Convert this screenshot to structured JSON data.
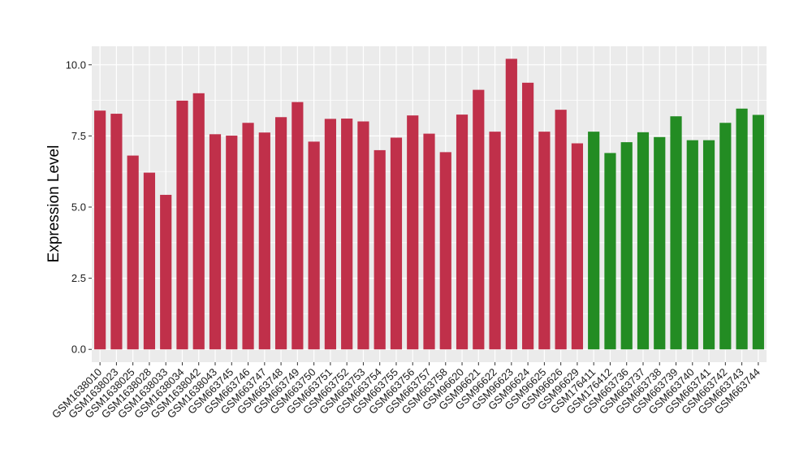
{
  "chart_data": {
    "type": "bar",
    "title": "",
    "xlabel": "",
    "ylabel": "Expression Level",
    "ylim": [
      -0.45,
      10.65
    ],
    "yticks": [
      0.0,
      2.5,
      5.0,
      7.5,
      10.0
    ],
    "ytick_labels": [
      "0.0",
      "2.5",
      "5.0",
      "7.5",
      "10.0"
    ],
    "grid": true,
    "legend": "none",
    "categories": [
      "GSM1638010",
      "GSM1638023",
      "GSM1638025",
      "GSM1638028",
      "GSM1638033",
      "GSM1638034",
      "GSM1638042",
      "GSM1638043",
      "GSM663745",
      "GSM663746",
      "GSM663747",
      "GSM663748",
      "GSM663749",
      "GSM663750",
      "GSM663751",
      "GSM663752",
      "GSM663753",
      "GSM663754",
      "GSM663755",
      "GSM663756",
      "GSM663757",
      "GSM663758",
      "GSM96620",
      "GSM96621",
      "GSM96622",
      "GSM96623",
      "GSM96624",
      "GSM96625",
      "GSM96626",
      "GSM96629",
      "GSM176411",
      "GSM176412",
      "GSM663736",
      "GSM663737",
      "GSM663738",
      "GSM663739",
      "GSM663740",
      "GSM663741",
      "GSM663742",
      "GSM663743",
      "GSM663744"
    ],
    "values": [
      8.39,
      8.28,
      6.81,
      6.21,
      5.43,
      8.74,
      9.0,
      7.56,
      7.51,
      7.96,
      7.62,
      8.16,
      8.69,
      7.3,
      8.1,
      8.11,
      8.01,
      7.0,
      7.44,
      8.22,
      7.58,
      6.93,
      8.25,
      9.12,
      7.65,
      10.21,
      9.37,
      7.65,
      8.42,
      7.24,
      7.65,
      6.9,
      7.28,
      7.63,
      7.46,
      8.19,
      7.35,
      7.35,
      7.96,
      8.46,
      8.24
    ],
    "groups": [
      "a",
      "a",
      "a",
      "a",
      "a",
      "a",
      "a",
      "a",
      "a",
      "a",
      "a",
      "a",
      "a",
      "a",
      "a",
      "a",
      "a",
      "a",
      "a",
      "a",
      "a",
      "a",
      "a",
      "a",
      "a",
      "a",
      "a",
      "a",
      "a",
      "a",
      "b",
      "b",
      "b",
      "b",
      "b",
      "b",
      "b",
      "b",
      "b",
      "b",
      "b"
    ],
    "group_colors": {
      "a": "#c0304a",
      "b": "#238c23"
    },
    "panel_background": "#ebebeb",
    "grid_color": "#ffffff"
  }
}
